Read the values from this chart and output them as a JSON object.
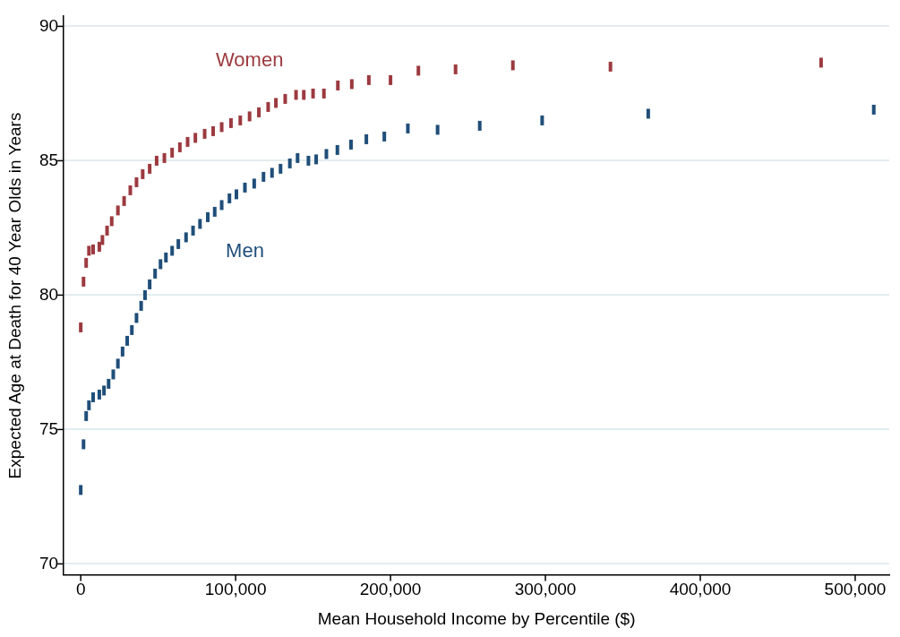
{
  "chart_data": {
    "type": "scatter",
    "xlabel": "Mean Household Income by Percentile ($)",
    "ylabel": "Expected Age at Death for 40 Year Olds in Years",
    "xlim": [
      -11000,
      522000
    ],
    "xticks": [
      {
        "value": 0,
        "label": "0"
      },
      {
        "value": 100000,
        "label": "100,000"
      },
      {
        "value": 200000,
        "label": "200,000"
      },
      {
        "value": 300000,
        "label": "300,000"
      },
      {
        "value": 400000,
        "label": "400,000"
      },
      {
        "value": 500000,
        "label": "500,000"
      }
    ],
    "ylim": [
      69.6,
      90.4
    ],
    "yticks": [
      70,
      75,
      80,
      85,
      90
    ],
    "grid": "y",
    "legend": "top left",
    "series": [
      {
        "name": "Women",
        "color": "#9c3a3f",
        "x": [
          0,
          1800,
          3500,
          5300,
          8000,
          12000,
          14000,
          17000,
          20000,
          24000,
          28000,
          32000,
          36000,
          40000,
          44500,
          49000,
          54000,
          59000,
          64000,
          69000,
          74000,
          80000,
          85500,
          91000,
          97000,
          103000,
          109000,
          115000,
          121000,
          126000,
          132000,
          139000,
          144000,
          150000,
          157000,
          166000,
          175000,
          186000,
          200000,
          218000,
          242000,
          279000,
          342000,
          478000
        ],
        "values": [
          78.8,
          80.5,
          81.2,
          81.65,
          81.7,
          81.8,
          82.05,
          82.4,
          82.75,
          83.15,
          83.5,
          83.9,
          84.2,
          84.5,
          84.7,
          85.0,
          85.1,
          85.3,
          85.5,
          85.7,
          85.85,
          86.0,
          86.1,
          86.25,
          86.4,
          86.5,
          86.65,
          86.8,
          87.0,
          87.15,
          87.3,
          87.45,
          87.45,
          87.5,
          87.5,
          87.8,
          87.85,
          88.0,
          88.0,
          88.35,
          88.4,
          88.55,
          88.5,
          88.65
        ]
      },
      {
        "name": "Men",
        "color": "#1f4e79",
        "x": [
          0,
          1800,
          3500,
          5300,
          8000,
          12000,
          15000,
          18000,
          21000,
          24000,
          27000,
          30000,
          33000,
          36000,
          39000,
          41500,
          44500,
          48000,
          51500,
          55000,
          59000,
          63000,
          68000,
          72500,
          77000,
          82000,
          86500,
          91000,
          96000,
          100500,
          106000,
          112000,
          118000,
          123500,
          129000,
          135000,
          140000,
          147000,
          152000,
          158600,
          165700,
          174500,
          184400,
          196000,
          211200,
          230400,
          257600,
          297900,
          366400,
          512000
        ],
        "values": [
          72.75,
          74.45,
          75.5,
          75.9,
          76.2,
          76.3,
          76.45,
          76.7,
          77.05,
          77.45,
          77.9,
          78.3,
          78.7,
          79.15,
          79.6,
          80.0,
          80.4,
          80.8,
          81.15,
          81.4,
          81.65,
          81.9,
          82.15,
          82.4,
          82.65,
          82.9,
          83.1,
          83.35,
          83.6,
          83.75,
          84.0,
          84.15,
          84.4,
          84.55,
          84.7,
          84.9,
          85.1,
          85.0,
          85.05,
          85.25,
          85.4,
          85.6,
          85.8,
          85.9,
          86.2,
          86.15,
          86.3,
          86.5,
          86.75,
          86.9
        ]
      }
    ]
  }
}
